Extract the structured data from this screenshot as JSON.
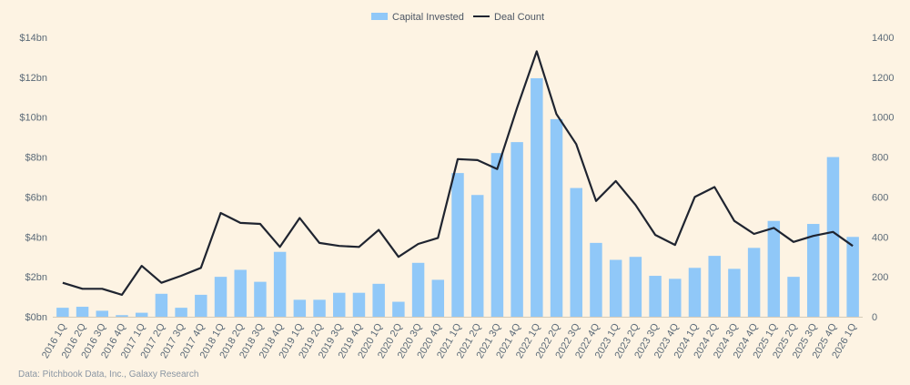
{
  "legend": {
    "bar_label": "Capital Invested",
    "line_label": "Deal Count"
  },
  "source": "Data: Pitchbook Data, Inc., Galaxy Research",
  "colors": {
    "bar": "#90c8f8",
    "line": "#1f2430",
    "background": "#fdf3e3",
    "tick": "#5b6a78"
  },
  "chart_data": {
    "type": "bar",
    "categories": [
      "2016 1Q",
      "2016 2Q",
      "2016 3Q",
      "2016 4Q",
      "2017 1Q",
      "2017 2Q",
      "2017 3Q",
      "2017 4Q",
      "2018 1Q",
      "2018 2Q",
      "2018 3Q",
      "2018 4Q",
      "2019 1Q",
      "2019 2Q",
      "2019 3Q",
      "2019 4Q",
      "2020 1Q",
      "2020 2Q",
      "2020 3Q",
      "2020 4Q",
      "2021 1Q",
      "2021 2Q",
      "2021 3Q",
      "2021 4Q",
      "2022 1Q",
      "2022 2Q",
      "2022 3Q",
      "2022 4Q",
      "2023 1Q",
      "2023 2Q",
      "2023 3Q",
      "2023 4Q",
      "2024 1Q",
      "2024 2Q",
      "2024 3Q",
      "2024 4Q",
      "2025 1Q",
      "2025 2Q",
      "2025 3Q",
      "2025 4Q",
      "2026 1Q"
    ],
    "series": [
      {
        "name": "Capital Invested",
        "type": "bar",
        "axis": "left",
        "values": [
          0.45,
          0.5,
          0.3,
          0.08,
          0.2,
          1.15,
          0.45,
          1.1,
          2.0,
          2.35,
          1.75,
          3.25,
          0.85,
          0.85,
          1.2,
          1.2,
          1.65,
          0.75,
          2.7,
          1.85,
          7.2,
          6.1,
          8.2,
          8.75,
          11.95,
          9.9,
          6.45,
          3.7,
          2.85,
          3.0,
          2.05,
          1.9,
          2.45,
          3.05,
          2.4,
          3.45,
          4.8,
          2.0,
          4.65,
          8.0,
          4.0
        ]
      },
      {
        "name": "Deal Count",
        "type": "line",
        "axis": "right",
        "values": [
          170,
          140,
          140,
          110,
          255,
          170,
          205,
          245,
          520,
          470,
          465,
          350,
          495,
          370,
          355,
          350,
          435,
          300,
          365,
          395,
          790,
          785,
          740,
          1045,
          1330,
          1015,
          865,
          580,
          680,
          560,
          410,
          360,
          600,
          650,
          480,
          415,
          445,
          375,
          405,
          425,
          355
        ]
      }
    ],
    "y_left": {
      "ylim": [
        0,
        14
      ],
      "ticks": [
        "$0bn",
        "$2bn",
        "$4bn",
        "$6bn",
        "$8bn",
        "$10bn",
        "$12bn",
        "$14bn"
      ]
    },
    "y_right": {
      "ylim": [
        0,
        1400
      ],
      "ticks": [
        "0",
        "200",
        "400",
        "600",
        "800",
        "1000",
        "1200",
        "1400"
      ]
    },
    "grid": false,
    "legend_position": "top-center"
  }
}
